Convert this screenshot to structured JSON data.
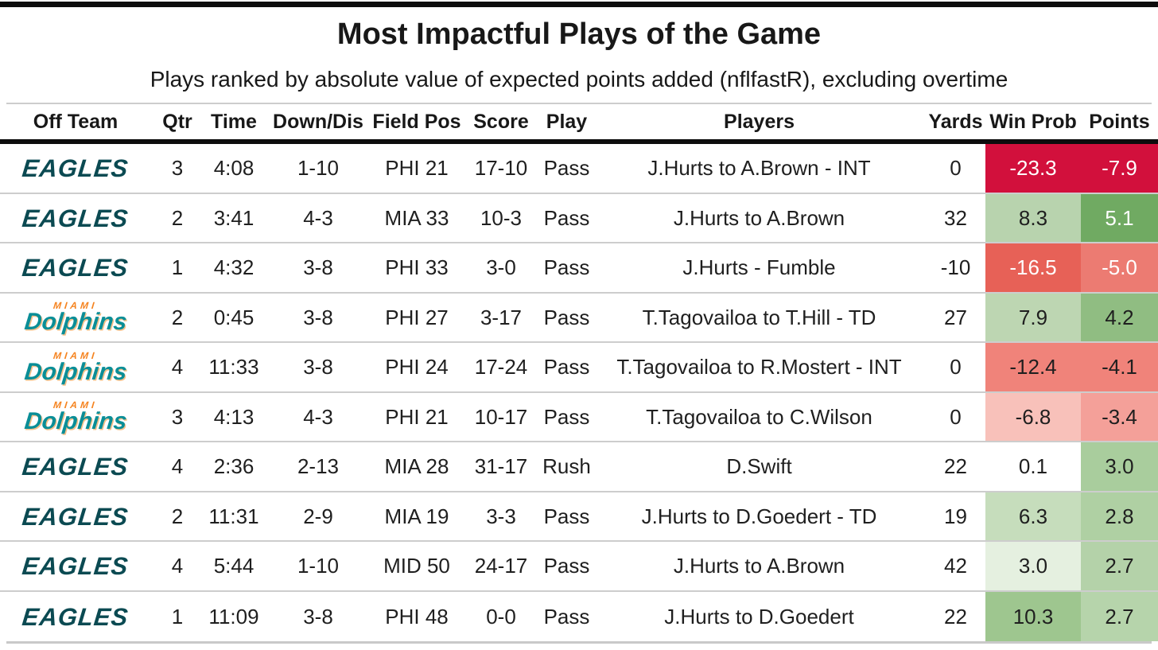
{
  "chart_data": {
    "type": "table",
    "title": "Most Impactful Plays of the Game",
    "subtitle": "Plays ranked by absolute value of expected points added (nflfastR), excluding overtime",
    "columns": [
      "Off Team",
      "Qtr",
      "Time",
      "Down/Dis",
      "Field Pos",
      "Score",
      "Play",
      "Players",
      "Yards",
      "Win Prob",
      "Points"
    ],
    "rows": [
      {
        "team": "eagles",
        "qtr": "3",
        "time": "4:08",
        "down_dis": "1-10",
        "field_pos": "PHI 21",
        "score": "17-10",
        "play": "Pass",
        "players": "J.Hurts to A.Brown - INT",
        "yards": "0",
        "win_prob": {
          "value": "-23.3",
          "bg": "#d2103c",
          "fg": "#ffffff"
        },
        "points": {
          "value": "-7.9",
          "bg": "#d2103c",
          "fg": "#ffffff"
        }
      },
      {
        "team": "eagles",
        "qtr": "2",
        "time": "3:41",
        "down_dis": "4-3",
        "field_pos": "MIA 33",
        "score": "10-3",
        "play": "Pass",
        "players": "J.Hurts to A.Brown",
        "yards": "32",
        "win_prob": {
          "value": "8.3",
          "bg": "#b8d3ae",
          "fg": "#1f1f1f"
        },
        "points": {
          "value": "5.1",
          "bg": "#70aa62",
          "fg": "#ffffff"
        }
      },
      {
        "team": "eagles",
        "qtr": "1",
        "time": "4:32",
        "down_dis": "3-8",
        "field_pos": "PHI 33",
        "score": "3-0",
        "play": "Pass",
        "players": "J.Hurts - Fumble",
        "yards": "-10",
        "win_prob": {
          "value": "-16.5",
          "bg": "#e76157",
          "fg": "#ffffff"
        },
        "points": {
          "value": "-5.0",
          "bg": "#ec7b72",
          "fg": "#ffffff"
        }
      },
      {
        "team": "dolphins",
        "qtr": "2",
        "time": "0:45",
        "down_dis": "3-8",
        "field_pos": "PHI 27",
        "score": "3-17",
        "play": "Pass",
        "players": "T.Tagovailoa to T.Hill - TD",
        "yards": "27",
        "win_prob": {
          "value": "7.9",
          "bg": "#bdd6b2",
          "fg": "#1f1f1f"
        },
        "points": {
          "value": "4.2",
          "bg": "#90bd82",
          "fg": "#1f1f1f"
        }
      },
      {
        "team": "dolphins",
        "qtr": "4",
        "time": "11:33",
        "down_dis": "3-8",
        "field_pos": "PHI 24",
        "score": "17-24",
        "play": "Pass",
        "players": "T.Tagovailoa to R.Mostert - INT",
        "yards": "0",
        "win_prob": {
          "value": "-12.4",
          "bg": "#f0837a",
          "fg": "#1f1f1f"
        },
        "points": {
          "value": "-4.1",
          "bg": "#f0837a",
          "fg": "#1f1f1f"
        }
      },
      {
        "team": "dolphins",
        "qtr": "3",
        "time": "4:13",
        "down_dis": "4-3",
        "field_pos": "PHI 21",
        "score": "10-17",
        "play": "Pass",
        "players": "T.Tagovailoa to C.Wilson",
        "yards": "0",
        "win_prob": {
          "value": "-6.8",
          "bg": "#f8c1ba",
          "fg": "#1f1f1f"
        },
        "points": {
          "value": "-3.4",
          "bg": "#f4a099",
          "fg": "#1f1f1f"
        }
      },
      {
        "team": "eagles",
        "qtr": "4",
        "time": "2:36",
        "down_dis": "2-13",
        "field_pos": "MIA 28",
        "score": "31-17",
        "play": "Rush",
        "players": "D.Swift",
        "yards": "22",
        "win_prob": {
          "value": "0.1",
          "bg": "#ffffff",
          "fg": "#1f1f1f"
        },
        "points": {
          "value": "3.0",
          "bg": "#a9cd9d",
          "fg": "#1f1f1f"
        }
      },
      {
        "team": "eagles",
        "qtr": "2",
        "time": "11:31",
        "down_dis": "2-9",
        "field_pos": "MIA 19",
        "score": "3-3",
        "play": "Pass",
        "players": "J.Hurts to D.Goedert - TD",
        "yards": "19",
        "win_prob": {
          "value": "6.3",
          "bg": "#c6ddbc",
          "fg": "#1f1f1f"
        },
        "points": {
          "value": "2.8",
          "bg": "#afd0a3",
          "fg": "#1f1f1f"
        }
      },
      {
        "team": "eagles",
        "qtr": "4",
        "time": "5:44",
        "down_dis": "1-10",
        "field_pos": "MID 50",
        "score": "24-17",
        "play": "Pass",
        "players": "J.Hurts to A.Brown",
        "yards": "42",
        "win_prob": {
          "value": "3.0",
          "bg": "#e5f0e0",
          "fg": "#1f1f1f"
        },
        "points": {
          "value": "2.7",
          "bg": "#b4d2a9",
          "fg": "#1f1f1f"
        }
      },
      {
        "team": "eagles",
        "qtr": "1",
        "time": "11:09",
        "down_dis": "3-8",
        "field_pos": "PHI 48",
        "score": "0-0",
        "play": "Pass",
        "players": "J.Hurts to D.Goedert",
        "yards": "22",
        "win_prob": {
          "value": "10.3",
          "bg": "#9ec68f",
          "fg": "#1f1f1f"
        },
        "points": {
          "value": "2.7",
          "bg": "#b6d4ab",
          "fg": "#1f1f1f"
        }
      }
    ]
  },
  "teams": {
    "eagles": {
      "wordmark": "EAGLES",
      "color": "#0b4a52"
    },
    "dolphins": {
      "city": "MIAMI",
      "wordmark": "Dolphins",
      "city_color": "#f5831f",
      "color": "#0a8e97"
    }
  },
  "colors": {
    "separator": "#cdcdcd",
    "rule_black": "#0d0d0d",
    "negative_strong": "#d2103c",
    "text_dark": "#1f1f1f",
    "text_light": "#ffffff"
  }
}
